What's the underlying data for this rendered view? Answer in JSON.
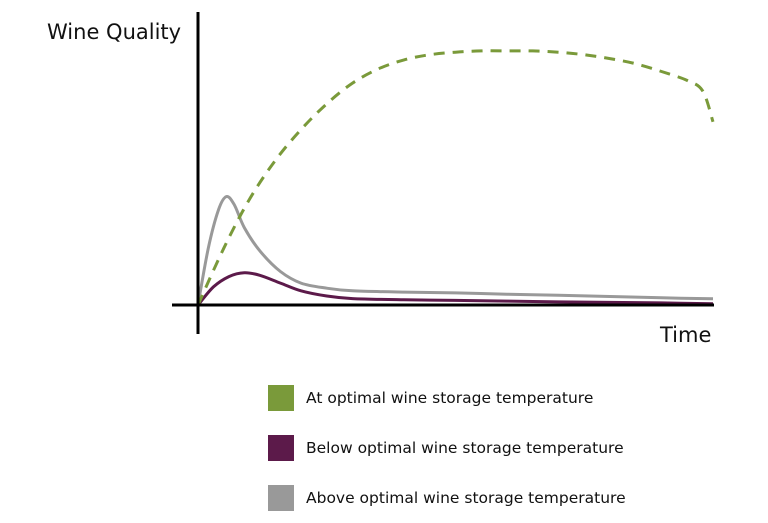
{
  "chart_data": {
    "type": "line",
    "title": "",
    "xlabel": "Time",
    "ylabel": "Wine Quality",
    "xlim": [
      0,
      100
    ],
    "ylim": [
      0,
      100
    ],
    "grid": false,
    "legend_position": "bottom",
    "series": [
      {
        "name": "At optimal wine storage temperature",
        "color": "#7a9a3a",
        "style": "dashed",
        "x": [
          0,
          5,
          10,
          15,
          20,
          25,
          30,
          35,
          40,
          45,
          50,
          55,
          60,
          65,
          70,
          75,
          80,
          85,
          90,
          95,
          98,
          100
        ],
        "y": [
          0,
          22,
          41,
          56,
          68,
          78,
          86,
          91.5,
          95,
          97,
          98,
          98.5,
          98.5,
          98.5,
          98,
          97,
          95.5,
          93.5,
          90.5,
          87,
          83,
          71
        ]
      },
      {
        "name": "Below optimal wine storage temperature",
        "color": "#5c1a4a",
        "style": "solid",
        "x": [
          0,
          3,
          6,
          9,
          12,
          16,
          20,
          25,
          30,
          40,
          50,
          60,
          70,
          80,
          90,
          100
        ],
        "y": [
          0,
          7,
          11,
          12.5,
          11.5,
          8.5,
          5.5,
          3.5,
          2.5,
          2,
          1.8,
          1.5,
          1.2,
          1,
          0.8,
          0.5
        ]
      },
      {
        "name": "Above optimal wine storage temperature",
        "color": "#999999",
        "style": "solid",
        "x": [
          0,
          2,
          4,
          5.5,
          7,
          9,
          12,
          16,
          20,
          25,
          30,
          40,
          50,
          60,
          70,
          80,
          90,
          100
        ],
        "y": [
          0,
          22,
          37,
          42,
          39,
          30,
          21,
          13,
          8.5,
          6.5,
          5.5,
          5,
          4.7,
          4.2,
          3.8,
          3.3,
          2.8,
          2.4
        ]
      }
    ]
  }
}
